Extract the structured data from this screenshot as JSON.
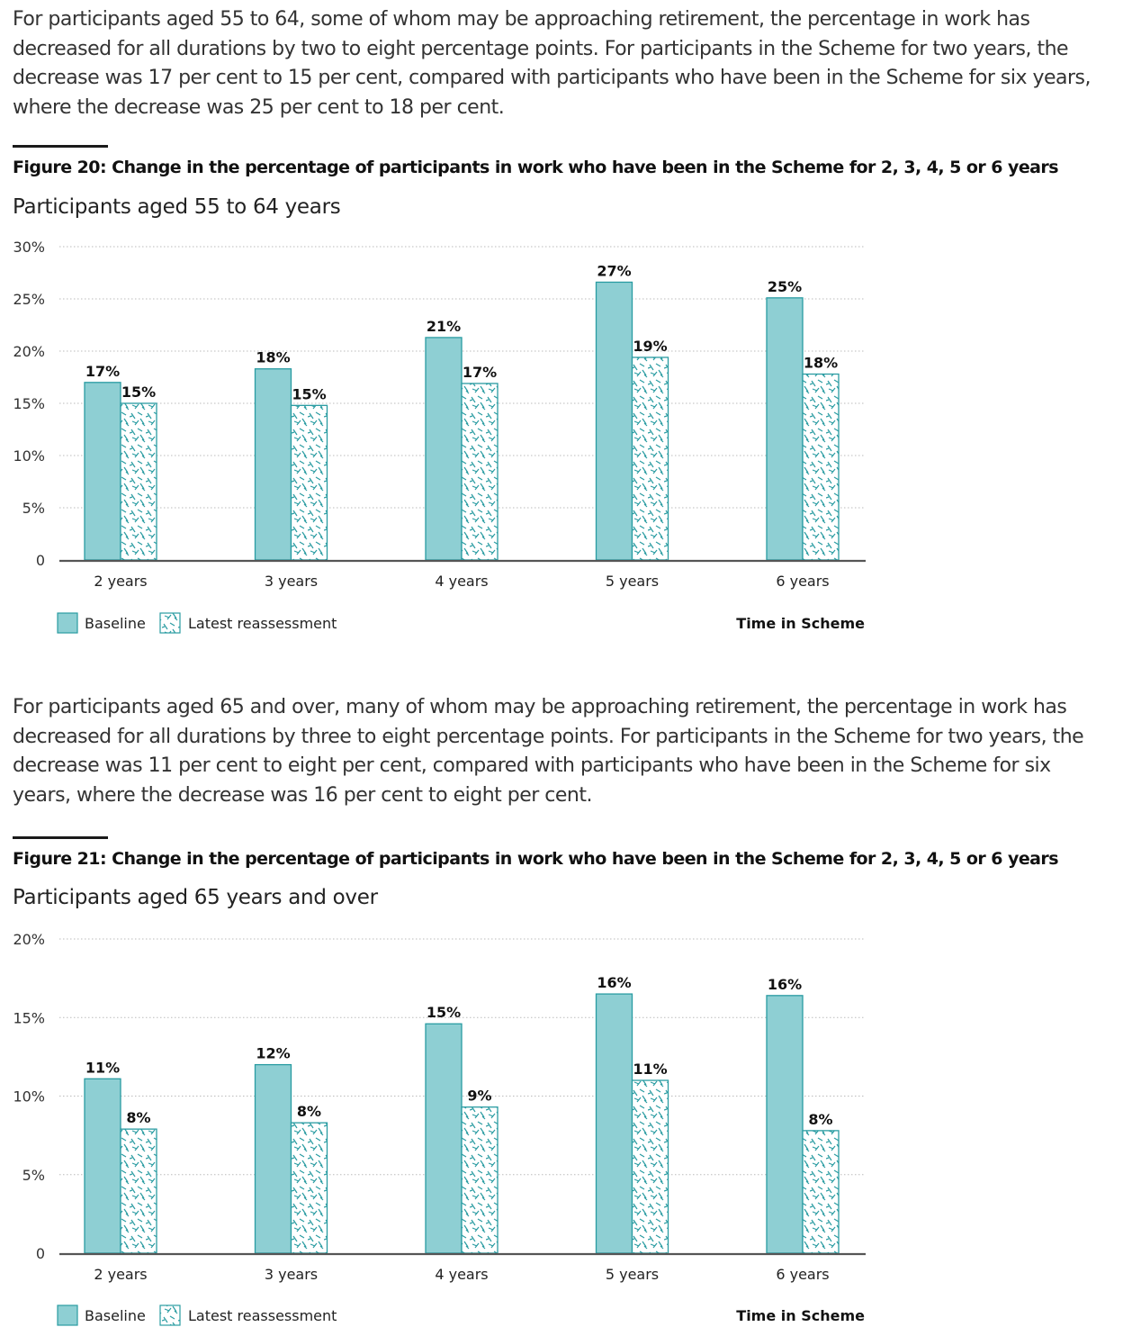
{
  "paragraphs": [
    "For participants aged 55 to 64, some of whom may be approaching retirement, the percentage in work has decreased for all durations by two to eight percentage points. For participants in the Scheme for two years, the decrease was 17 per cent to 15 per cent, compared with participants who have been in the Scheme for six years, where the decrease was 25 per cent to 18 per cent.",
    "For participants aged 65 and over, many of whom may be approaching retirement, the percentage in work has decreased for all durations by three to eight percentage points. For participants in the Scheme for two years, the decrease was 11 per cent to eight per cent, compared with participants who have been in the Scheme for six years, where the decrease was 16 per cent to eight per cent."
  ],
  "colors": {
    "baseline_fill": "#8ecfd3",
    "series_stroke": "#2a9ca2",
    "hatch_stroke": "#2a9ca2",
    "grid": "#bbbbbb",
    "axis": "#555555"
  },
  "chart_data": [
    {
      "type": "bar",
      "figure_label": "Figure 20: Change in the percentage of participants in work who have been in the Scheme for 2, 3, 4, 5 or 6 years",
      "subtitle": "Participants aged 55 to 64 years",
      "xlabel": "Time in Scheme",
      "categories": [
        "2 years",
        "3 years",
        "4 years",
        "5 years",
        "6 years"
      ],
      "ylim": [
        0,
        30
      ],
      "yticks": [
        0,
        5,
        10,
        15,
        20,
        25,
        30
      ],
      "ytick_labels": [
        "0",
        "5%",
        "10%",
        "15%",
        "20%",
        "25%",
        "30%"
      ],
      "grid": true,
      "legend_position": "bottom-left",
      "series": [
        {
          "name": "Baseline",
          "values": [
            17,
            18.3,
            21.3,
            26.6,
            25.1
          ],
          "labels": [
            "17%",
            "18%",
            "21%",
            "27%",
            "25%"
          ]
        },
        {
          "name": "Latest reassessment",
          "values": [
            15,
            14.8,
            16.9,
            19.4,
            17.8
          ],
          "labels": [
            "15%",
            "15%",
            "17%",
            "19%",
            "18%"
          ]
        }
      ]
    },
    {
      "type": "bar",
      "figure_label": "Figure 21: Change in the percentage of participants in work who have been in the Scheme for 2, 3, 4, 5 or 6 years",
      "subtitle": "Participants aged 65 years and over",
      "xlabel": "Time in Scheme",
      "categories": [
        "2 years",
        "3 years",
        "4 years",
        "5 years",
        "6 years"
      ],
      "ylim": [
        0,
        20
      ],
      "yticks": [
        0,
        5,
        10,
        15,
        20
      ],
      "ytick_labels": [
        "0",
        "5%",
        "10%",
        "15%",
        "20%"
      ],
      "grid": true,
      "legend_position": "bottom-left",
      "series": [
        {
          "name": "Baseline",
          "values": [
            11.1,
            12,
            14.6,
            16.5,
            16.4
          ],
          "labels": [
            "11%",
            "12%",
            "15%",
            "16%",
            "16%"
          ]
        },
        {
          "name": "Latest reassessment",
          "values": [
            7.9,
            8.3,
            9.3,
            11,
            7.8
          ],
          "labels": [
            "8%",
            "8%",
            "9%",
            "11%",
            "8%"
          ]
        }
      ]
    }
  ]
}
